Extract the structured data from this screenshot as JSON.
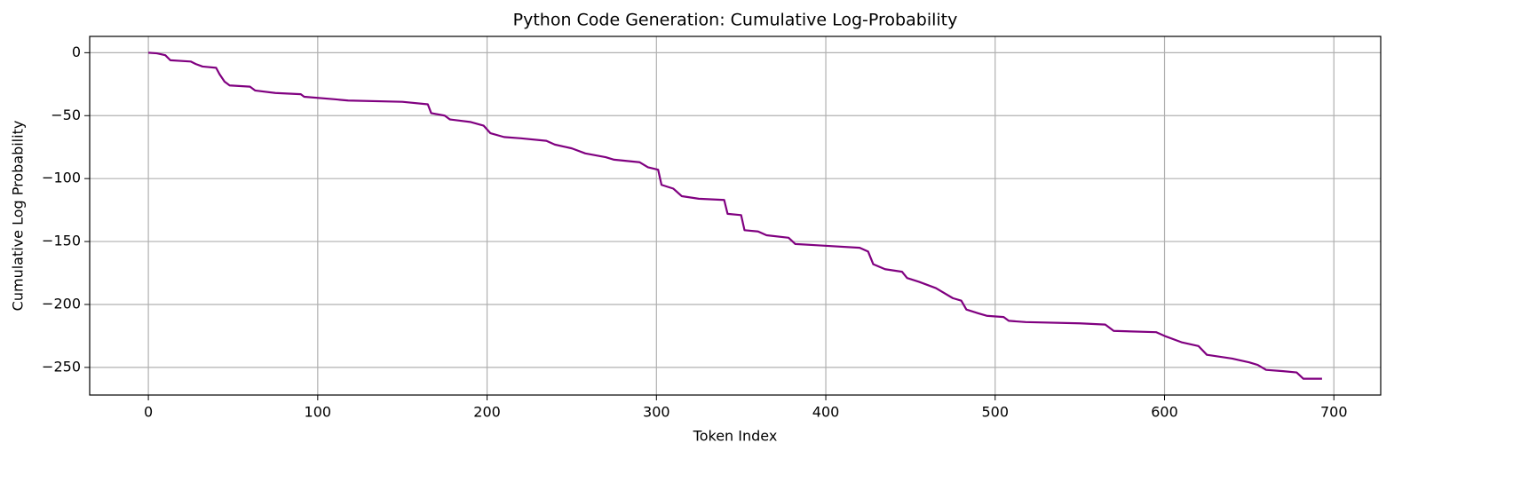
{
  "chart_data": {
    "type": "line",
    "title": "Python Code Generation: Cumulative Log-Probability",
    "xlabel": "Token Index",
    "ylabel": "Cumulative Log Probability",
    "color": "#800080",
    "grid": true,
    "x": [
      0,
      5,
      10,
      13,
      25,
      28,
      32,
      40,
      42,
      45,
      48,
      60,
      63,
      75,
      90,
      92,
      110,
      118,
      150,
      165,
      167,
      175,
      178,
      190,
      198,
      202,
      210,
      220,
      235,
      240,
      250,
      258,
      270,
      275,
      290,
      295,
      301,
      303,
      310,
      315,
      325,
      340,
      342,
      350,
      352,
      360,
      365,
      378,
      382,
      395,
      420,
      425,
      428,
      435,
      445,
      448,
      455,
      465,
      475,
      480,
      483,
      490,
      495,
      505,
      508,
      518,
      550,
      565,
      570,
      595,
      600,
      610,
      620,
      625,
      640,
      650,
      655,
      660,
      670,
      678,
      682,
      693
    ],
    "values": [
      0,
      -0.5,
      -2,
      -6,
      -7,
      -9,
      -11,
      -12,
      -17,
      -23,
      -26,
      -27,
      -30,
      -32,
      -33,
      -35,
      -37,
      -38,
      -39,
      -41,
      -48,
      -50,
      -53,
      -55,
      -58,
      -64,
      -67,
      -68,
      -70,
      -73,
      -76,
      -80,
      -83,
      -85,
      -87,
      -91,
      -93,
      -105,
      -108,
      -114,
      -116,
      -117,
      -128,
      -129,
      -141,
      -142,
      -145,
      -147,
      -152,
      -153,
      -155,
      -158,
      -168,
      -172,
      -174,
      -179,
      -182,
      -187,
      -195,
      -197,
      -204,
      -207,
      -209,
      -210,
      -213,
      -214,
      -215,
      -216,
      -221,
      -222,
      -225,
      -230,
      -233,
      -240,
      -243,
      -246,
      -248,
      -252,
      -253,
      -254,
      -259,
      -259
    ],
    "xlim": [
      -34.65,
      727.65
    ],
    "ylim": [
      -271.95,
      12.95
    ],
    "xticks": [
      0,
      100,
      200,
      300,
      400,
      500,
      600,
      700
    ],
    "yticks": [
      0,
      {
        "value": -50,
        "label": "−50"
      },
      {
        "value": -100,
        "label": "−100"
      },
      {
        "value": -150,
        "label": "−150"
      },
      {
        "value": -200,
        "label": "−200"
      },
      {
        "value": -250,
        "label": "−250"
      }
    ]
  }
}
